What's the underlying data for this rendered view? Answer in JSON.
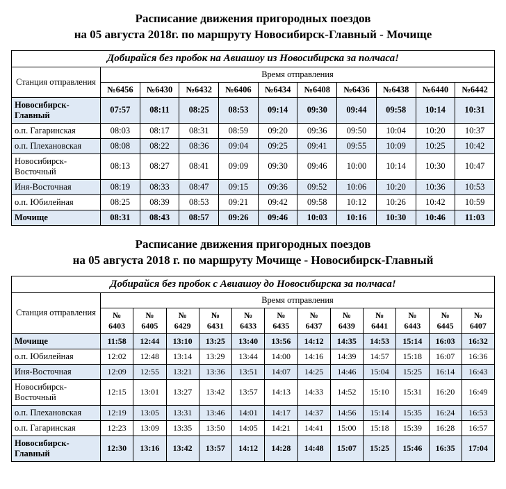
{
  "section1": {
    "title_line1": "Расписание движения пригородных поездов",
    "title_line2": "на 05 августа 2018г. по маршруту Новосибирск-Главный - Мочище",
    "promo": "Добирайся без пробок на Авиашоу из Новосибирска за полчаса!",
    "departure_header": "Время отправления",
    "station_header": "Станция отправления",
    "trains": [
      "№6456",
      "№6430",
      "№6432",
      "№6406",
      "№6434",
      "№6408",
      "№6436",
      "№6438",
      "№6440",
      "№6442"
    ],
    "rows": [
      {
        "station": "Новосибирск-Главный",
        "bold": true,
        "times": [
          "07:57",
          "08:11",
          "08:25",
          "08:53",
          "09:14",
          "09:30",
          "09:44",
          "09:58",
          "10:14",
          "10:31"
        ]
      },
      {
        "station": "о.п. Гагаринская",
        "bold": false,
        "times": [
          "08:03",
          "08:17",
          "08:31",
          "08:59",
          "09:20",
          "09:36",
          "09:50",
          "10:04",
          "10:20",
          "10:37"
        ]
      },
      {
        "station": "о.п. Плехановская",
        "bold": false,
        "times": [
          "08:08",
          "08:22",
          "08:36",
          "09:04",
          "09:25",
          "09:41",
          "09:55",
          "10:09",
          "10:25",
          "10:42"
        ]
      },
      {
        "station": "Новосибирск-Восточный",
        "bold": false,
        "times": [
          "08:13",
          "08:27",
          "08:41",
          "09:09",
          "09:30",
          "09:46",
          "10:00",
          "10:14",
          "10:30",
          "10:47"
        ]
      },
      {
        "station": "Иня-Восточная",
        "bold": false,
        "times": [
          "08:19",
          "08:33",
          "08:47",
          "09:15",
          "09:36",
          "09:52",
          "10:06",
          "10:20",
          "10:36",
          "10:53"
        ]
      },
      {
        "station": "о.п. Юбилейная",
        "bold": false,
        "times": [
          "08:25",
          "08:39",
          "08:53",
          "09:21",
          "09:42",
          "09:58",
          "10:12",
          "10:26",
          "10:42",
          "10:59"
        ]
      },
      {
        "station": "Мочище",
        "bold": true,
        "times": [
          "08:31",
          "08:43",
          "08:57",
          "09:26",
          "09:46",
          "10:03",
          "10:16",
          "10:30",
          "10:46",
          "11:03"
        ]
      }
    ]
  },
  "section2": {
    "title_line1": "Расписание движения пригородных поездов",
    "title_line2": "на 05 августа 2018 г. по маршруту Мочище - Новосибирск-Главный",
    "promo": "Добирайся без пробок с Авиашоу до Новосибирска за полчаса!",
    "departure_header": "Время отправления",
    "station_header": "Станция отправления",
    "trains": [
      "№ 6403",
      "№ 6405",
      "№ 6429",
      "№ 6431",
      "№ 6433",
      "№ 6435",
      "№ 6437",
      "№ 6439",
      "№ 6441",
      "№ 6443",
      "№ 6445",
      "№ 6407"
    ],
    "rows": [
      {
        "station": "Мочище",
        "bold": true,
        "times": [
          "11:58",
          "12:44",
          "13:10",
          "13:25",
          "13:40",
          "13:56",
          "14:12",
          "14:35",
          "14:53",
          "15:14",
          "16:03",
          "16:32"
        ]
      },
      {
        "station": "о.п. Юбилейная",
        "bold": false,
        "times": [
          "12:02",
          "12:48",
          "13:14",
          "13:29",
          "13:44",
          "14:00",
          "14:16",
          "14:39",
          "14:57",
          "15:18",
          "16:07",
          "16:36"
        ]
      },
      {
        "station": "Иня-Восточная",
        "bold": false,
        "times": [
          "12:09",
          "12:55",
          "13:21",
          "13:36",
          "13:51",
          "14:07",
          "14:25",
          "14:46",
          "15:04",
          "15:25",
          "16:14",
          "16:43"
        ]
      },
      {
        "station": "Новосибирск-Восточный",
        "bold": false,
        "times": [
          "12:15",
          "13:01",
          "13:27",
          "13:42",
          "13:57",
          "14:13",
          "14:33",
          "14:52",
          "15:10",
          "15:31",
          "16:20",
          "16:49"
        ]
      },
      {
        "station": "о.п. Плехановская",
        "bold": false,
        "times": [
          "12:19",
          "13:05",
          "13:31",
          "13:46",
          "14:01",
          "14:17",
          "14:37",
          "14:56",
          "15:14",
          "15:35",
          "16:24",
          "16:53"
        ]
      },
      {
        "station": "о.п. Гагаринская",
        "bold": false,
        "times": [
          "12:23",
          "13:09",
          "13:35",
          "13:50",
          "14:05",
          "14:21",
          "14:41",
          "15:00",
          "15:18",
          "15:39",
          "16:28",
          "16:57"
        ]
      },
      {
        "station": "Новосибирск-Главный",
        "bold": true,
        "times": [
          "12:30",
          "13:16",
          "13:42",
          "13:57",
          "14:12",
          "14:28",
          "14:48",
          "15:07",
          "15:25",
          "15:46",
          "16:35",
          "17:04"
        ]
      }
    ]
  },
  "colors": {
    "even_row_bg": "#dfe9f5",
    "border": "#000000",
    "background": "#ffffff"
  }
}
